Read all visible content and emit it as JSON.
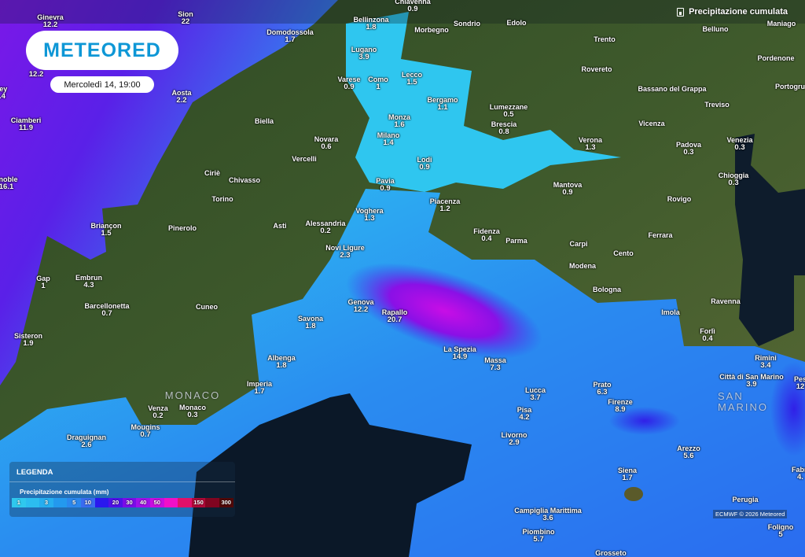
{
  "brand": {
    "logo_text": "METEORED"
  },
  "datetime": "Mercoledì 14, 19:00",
  "layer": {
    "title": "Precipitazione cumulata",
    "icon": "rain-gauge-icon"
  },
  "legend": {
    "title": "LEGENDA",
    "subtitle": "Precipitazione cumulata (mm)",
    "steps": [
      {
        "label": "1",
        "color": "#2fc8ee"
      },
      {
        "label": "",
        "color": "#2cbdf0"
      },
      {
        "label": "3",
        "color": "#26aef0"
      },
      {
        "label": "",
        "color": "#2399ee"
      },
      {
        "label": "5",
        "color": "#2b88ee"
      },
      {
        "label": "10",
        "color": "#3a6cf0"
      },
      {
        "label": "",
        "color": "#2a18ee"
      },
      {
        "label": "20",
        "color": "#4f10e8"
      },
      {
        "label": "30",
        "color": "#7a0ce8"
      },
      {
        "label": "40",
        "color": "#a010ea"
      },
      {
        "label": "50",
        "color": "#c80ee0"
      },
      {
        "label": "",
        "color": "#f010c8"
      },
      {
        "label": "",
        "color": "#e0106a"
      },
      {
        "label": "150",
        "color": "#b00838"
      },
      {
        "label": "",
        "color": "#800420"
      },
      {
        "label": "300",
        "color": "#500808"
      }
    ]
  },
  "attribution": "ECMWF © 2026 Meteored",
  "countries": [
    "MONACO",
    "SAN MARINO"
  ],
  "cities": [
    {
      "name": "Ginevra",
      "value": "12.2"
    },
    {
      "name": "Sion",
      "value": "22"
    },
    {
      "name": "ley",
      "value": ".4"
    },
    {
      "name": "",
      "value": "12.2"
    },
    {
      "name": "Domodossola",
      "value": "1.7"
    },
    {
      "name": "Chiavenna",
      "value": "0.9"
    },
    {
      "name": "Bellinzona",
      "value": "1.8"
    },
    {
      "name": "Lugano",
      "value": "3.9"
    },
    {
      "name": "Varese",
      "value": "0.9"
    },
    {
      "name": "Como",
      "value": "1"
    },
    {
      "name": "Lecco",
      "value": "1.5"
    },
    {
      "name": "Aosta",
      "value": "2.2"
    },
    {
      "name": "Ciamberi",
      "value": "11.9"
    },
    {
      "name": "Biella",
      "value": ""
    },
    {
      "name": "Monza",
      "value": "1.6"
    },
    {
      "name": "Bergamo",
      "value": "1.1"
    },
    {
      "name": "Milano",
      "value": "1.4"
    },
    {
      "name": "Novara",
      "value": "0.6"
    },
    {
      "name": "Vercelli",
      "value": ""
    },
    {
      "name": "Lodi",
      "value": "0.9"
    },
    {
      "name": "Pavia",
      "value": "0.9"
    },
    {
      "name": "Ciriè",
      "value": ""
    },
    {
      "name": "Chivasso",
      "value": ""
    },
    {
      "name": "Torino",
      "value": ""
    },
    {
      "name": "enoble",
      "value": "16.1"
    },
    {
      "name": "Voghera",
      "value": "1.3"
    },
    {
      "name": "Piacenza",
      "value": "1.2"
    },
    {
      "name": "Alessandria",
      "value": "0.2"
    },
    {
      "name": "Asti",
      "value": ""
    },
    {
      "name": "Pinerolo",
      "value": ""
    },
    {
      "name": "Briançon",
      "value": "1.5"
    },
    {
      "name": "Fidenza",
      "value": "0.4"
    },
    {
      "name": "Parma",
      "value": ""
    },
    {
      "name": "Novi Ligure",
      "value": "2.3"
    },
    {
      "name": "Gap",
      "value": "1"
    },
    {
      "name": "Embrun",
      "value": "4.3"
    },
    {
      "name": "Barcellonetta",
      "value": "0.7"
    },
    {
      "name": "Cuneo",
      "value": ""
    },
    {
      "name": "Genova",
      "value": "12.2"
    },
    {
      "name": "Rapallo",
      "value": "20.7"
    },
    {
      "name": "Savona",
      "value": "1.8"
    },
    {
      "name": "Sisteron",
      "value": "1.9"
    },
    {
      "name": "Albenga",
      "value": "1.8"
    },
    {
      "name": "La Spezia",
      "value": "14.9"
    },
    {
      "name": "Massa",
      "value": "7.3"
    },
    {
      "name": "Imperia",
      "value": "1.7"
    },
    {
      "name": "Venza",
      "value": "0.2"
    },
    {
      "name": "Monaco",
      "value": "0.3"
    },
    {
      "name": "Mougins",
      "value": "0.7"
    },
    {
      "name": "Draguignan",
      "value": "2.6"
    },
    {
      "name": "Morbegno",
      "value": ""
    },
    {
      "name": "Sondrio",
      "value": ""
    },
    {
      "name": "Edolo",
      "value": ""
    },
    {
      "name": "Trento",
      "value": ""
    },
    {
      "name": "Belluno",
      "value": ""
    },
    {
      "name": "Maniago",
      "value": ""
    },
    {
      "name": "Pordenone",
      "value": ""
    },
    {
      "name": "Rovereto",
      "value": ""
    },
    {
      "name": "Bassano del Grappa",
      "value": ""
    },
    {
      "name": "Portogru",
      "value": ""
    },
    {
      "name": "Treviso",
      "value": ""
    },
    {
      "name": "Lumezzane",
      "value": "0.5"
    },
    {
      "name": "Brescia",
      "value": "0.8"
    },
    {
      "name": "Vicenza",
      "value": ""
    },
    {
      "name": "Verona",
      "value": "1.3"
    },
    {
      "name": "Padova",
      "value": "0.3"
    },
    {
      "name": "Venezia",
      "value": "0.3"
    },
    {
      "name": "Chioggia",
      "value": "0.3"
    },
    {
      "name": "Mantova",
      "value": "0.9"
    },
    {
      "name": "Rovigo",
      "value": ""
    },
    {
      "name": "Ferrara",
      "value": ""
    },
    {
      "name": "Carpi",
      "value": ""
    },
    {
      "name": "Cento",
      "value": ""
    },
    {
      "name": "Modena",
      "value": ""
    },
    {
      "name": "Bologna",
      "value": ""
    },
    {
      "name": "Ravenna",
      "value": ""
    },
    {
      "name": "Imola",
      "value": ""
    },
    {
      "name": "Forlì",
      "value": "0.4"
    },
    {
      "name": "Rimini",
      "value": "3.4"
    },
    {
      "name": "Città di San Marino",
      "value": "3.9"
    },
    {
      "name": "Pes",
      "value": "12"
    },
    {
      "name": "Prato",
      "value": "6.3"
    },
    {
      "name": "Lucca",
      "value": "3.7"
    },
    {
      "name": "Firenze",
      "value": "8.9"
    },
    {
      "name": "Pisa",
      "value": "4.2"
    },
    {
      "name": "Livorno",
      "value": "2.9"
    },
    {
      "name": "Arezzo",
      "value": "5.6"
    },
    {
      "name": "Siena",
      "value": "1.7"
    },
    {
      "name": "Fabri",
      "value": "4."
    },
    {
      "name": "Perugia",
      "value": ""
    },
    {
      "name": "Foligno",
      "value": "5"
    },
    {
      "name": "Campiglia Marittima",
      "value": "3.6"
    },
    {
      "name": "Piombino",
      "value": "5.7"
    },
    {
      "name": "Grosseto",
      "value": ""
    }
  ]
}
